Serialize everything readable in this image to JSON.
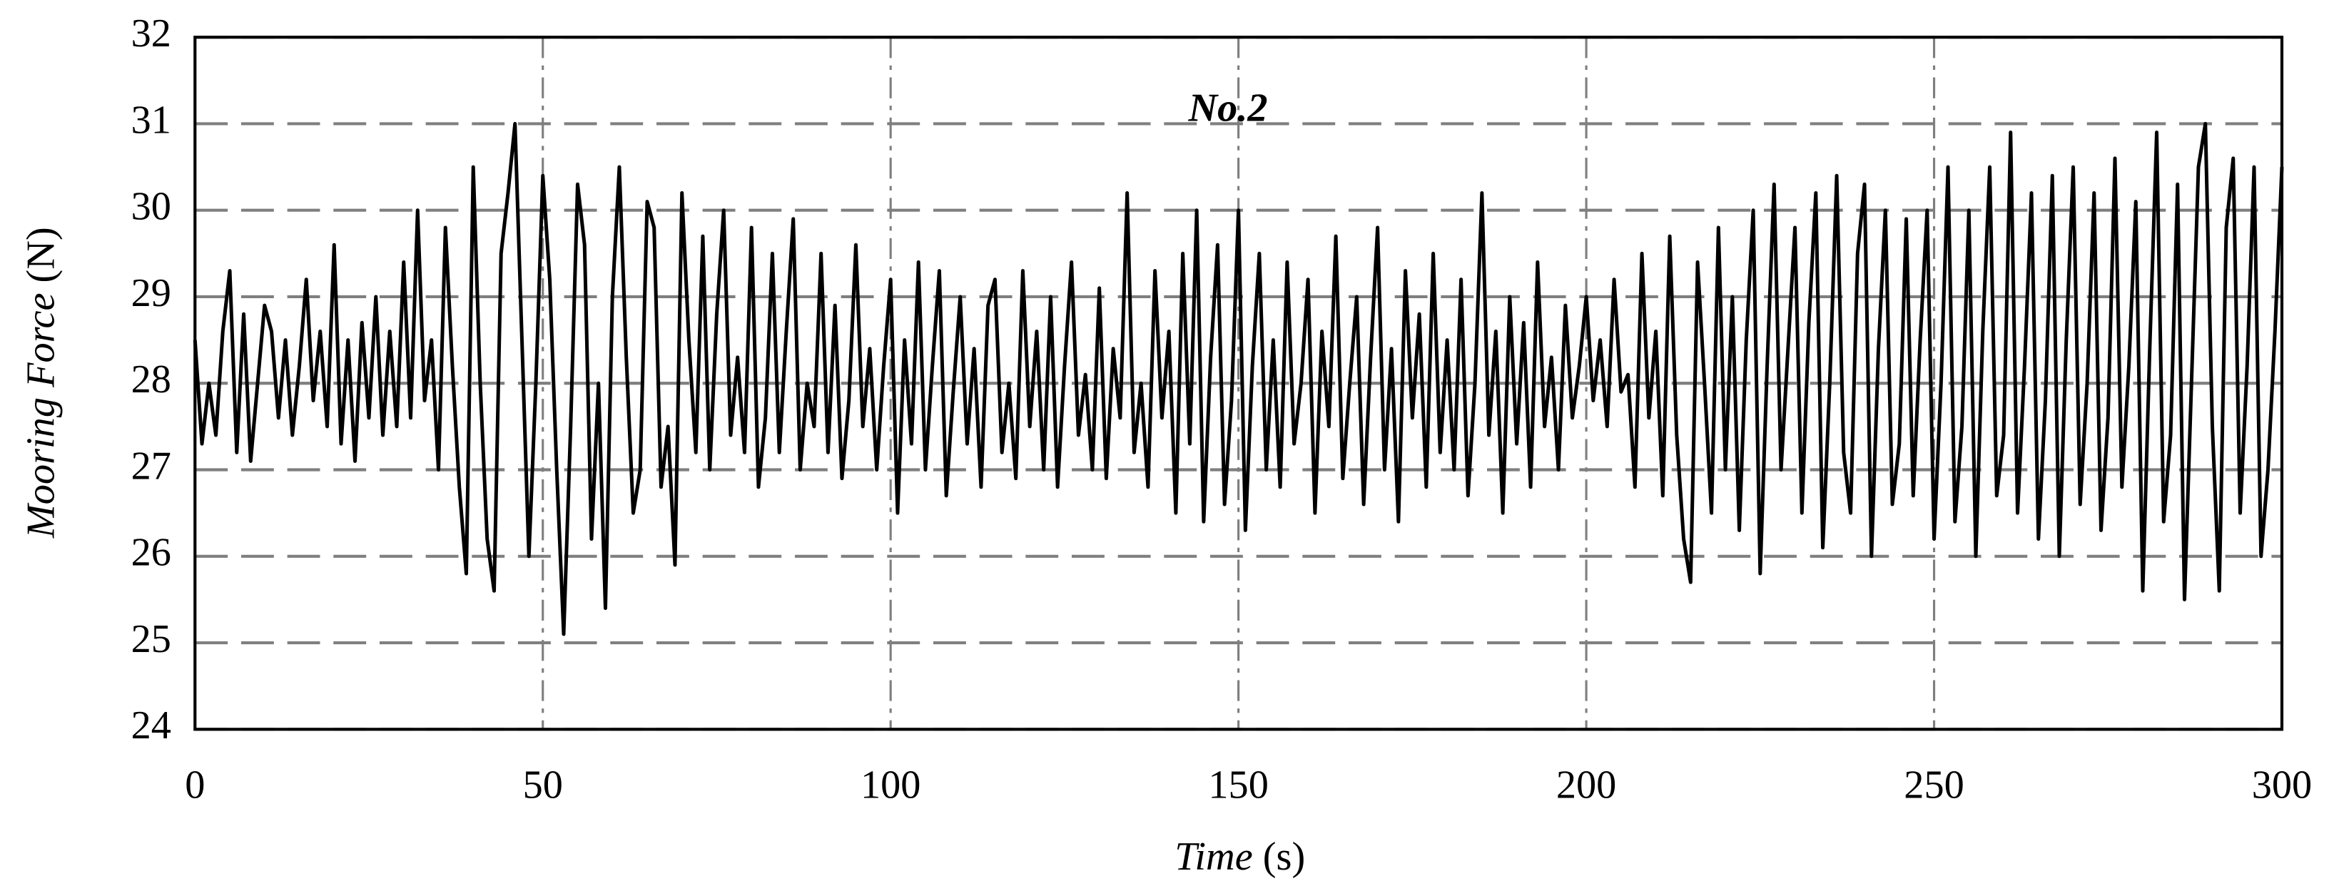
{
  "chart_data": {
    "type": "line",
    "title": "No.2",
    "x_label": {
      "name": "Time",
      "unit": "(s)"
    },
    "y_label": {
      "name": "Mooring Force",
      "unit": "(N)"
    },
    "xlim": [
      0,
      300
    ],
    "xticks": [
      0,
      50,
      100,
      150,
      200,
      250,
      300
    ],
    "ylim": [
      24,
      32
    ],
    "yticks": [
      24,
      25,
      26,
      27,
      28,
      29,
      30,
      31,
      32
    ],
    "grid": true,
    "x": [
      0,
      1,
      2,
      3,
      4,
      5,
      6,
      7,
      8,
      9,
      10,
      11,
      12,
      13,
      14,
      15,
      16,
      17,
      18,
      19,
      20,
      21,
      22,
      23,
      24,
      25,
      26,
      27,
      28,
      29,
      30,
      31,
      32,
      33,
      34,
      35,
      36,
      37,
      38,
      39,
      40,
      41,
      42,
      43,
      44,
      45,
      46,
      47,
      48,
      49,
      50,
      51,
      52,
      53,
      54,
      55,
      56,
      57,
      58,
      59,
      60,
      61,
      62,
      63,
      64,
      65,
      66,
      67,
      68,
      69,
      70,
      71,
      72,
      73,
      74,
      75,
      76,
      77,
      78,
      79,
      80,
      81,
      82,
      83,
      84,
      85,
      86,
      87,
      88,
      89,
      90,
      91,
      92,
      93,
      94,
      95,
      96,
      97,
      98,
      99,
      100,
      101,
      102,
      103,
      104,
      105,
      106,
      107,
      108,
      109,
      110,
      111,
      112,
      113,
      114,
      115,
      116,
      117,
      118,
      119,
      120,
      121,
      122,
      123,
      124,
      125,
      126,
      127,
      128,
      129,
      130,
      131,
      132,
      133,
      134,
      135,
      136,
      137,
      138,
      139,
      140,
      141,
      142,
      143,
      144,
      145,
      146,
      147,
      148,
      149,
      150,
      151,
      152,
      153,
      154,
      155,
      156,
      157,
      158,
      159,
      160,
      161,
      162,
      163,
      164,
      165,
      166,
      167,
      168,
      169,
      170,
      171,
      172,
      173,
      174,
      175,
      176,
      177,
      178,
      179,
      180,
      181,
      182,
      183,
      184,
      185,
      186,
      187,
      188,
      189,
      190,
      191,
      192,
      193,
      194,
      195,
      196,
      197,
      198,
      199,
      200,
      201,
      202,
      203,
      204,
      205,
      206,
      207,
      208,
      209,
      210,
      211,
      212,
      213,
      214,
      215,
      216,
      217,
      218,
      219,
      220,
      221,
      222,
      223,
      224,
      225,
      226,
      227,
      228,
      229,
      230,
      231,
      232,
      233,
      234,
      235,
      236,
      237,
      238,
      239,
      240,
      241,
      242,
      243,
      244,
      245,
      246,
      247,
      248,
      249,
      250,
      251,
      252,
      253,
      254,
      255,
      256,
      257,
      258,
      259,
      260,
      261,
      262,
      263,
      264,
      265,
      266,
      267,
      268,
      269,
      270,
      271,
      272,
      273,
      274,
      275,
      276,
      277,
      278,
      279,
      280,
      281,
      282,
      283,
      284,
      285,
      286,
      287,
      288,
      289,
      290,
      291,
      292,
      293,
      294,
      295,
      296,
      297,
      298,
      299,
      300
    ],
    "series": [
      {
        "name": "No.2",
        "color": "#000000",
        "values": [
          28.5,
          27.3,
          28.0,
          27.4,
          28.6,
          29.3,
          27.2,
          28.8,
          27.1,
          28.0,
          28.9,
          28.6,
          27.6,
          28.5,
          27.4,
          28.2,
          29.2,
          27.8,
          28.6,
          27.5,
          29.6,
          27.3,
          28.5,
          27.1,
          28.7,
          27.6,
          29.0,
          27.4,
          28.6,
          27.5,
          29.4,
          27.6,
          30.0,
          27.8,
          28.5,
          27.0,
          29.8,
          28.2,
          26.8,
          25.8,
          30.5,
          28.0,
          26.2,
          25.6,
          29.5,
          30.2,
          31.0,
          28.5,
          26.0,
          28.0,
          30.4,
          29.2,
          27.0,
          25.1,
          27.5,
          30.3,
          29.6,
          26.2,
          28.0,
          25.4,
          29.0,
          30.5,
          28.3,
          26.5,
          27.0,
          30.1,
          29.8,
          26.8,
          27.5,
          25.9,
          30.2,
          28.5,
          27.2,
          29.7,
          27.0,
          28.8,
          30.0,
          27.4,
          28.3,
          27.2,
          29.8,
          26.8,
          27.6,
          29.5,
          27.2,
          28.6,
          29.9,
          27.0,
          28.0,
          27.5,
          29.5,
          27.2,
          28.9,
          26.9,
          27.8,
          29.6,
          27.5,
          28.4,
          27.0,
          28.2,
          29.2,
          26.5,
          28.5,
          27.3,
          29.4,
          27.0,
          28.2,
          29.3,
          26.7,
          27.9,
          29.0,
          27.3,
          28.4,
          26.8,
          28.9,
          29.2,
          27.2,
          28.0,
          26.9,
          29.3,
          27.5,
          28.6,
          27.0,
          29.0,
          26.8,
          28.2,
          29.4,
          27.4,
          28.1,
          27.0,
          29.1,
          26.9,
          28.4,
          27.6,
          30.2,
          27.2,
          28.0,
          26.8,
          29.3,
          27.6,
          28.6,
          26.5,
          29.5,
          27.3,
          30.0,
          26.4,
          28.3,
          29.6,
          26.6,
          27.8,
          30.0,
          26.3,
          28.2,
          29.5,
          27.0,
          28.5,
          26.8,
          29.4,
          27.3,
          28.0,
          29.2,
          26.5,
          28.6,
          27.5,
          29.7,
          26.9,
          28.0,
          29.0,
          26.6,
          28.3,
          29.8,
          27.0,
          28.4,
          26.4,
          29.3,
          27.6,
          28.8,
          26.8,
          29.5,
          27.2,
          28.5,
          27.0,
          29.2,
          26.7,
          28.0,
          30.2,
          27.4,
          28.6,
          26.5,
          29.0,
          27.3,
          28.7,
          26.8,
          29.4,
          27.5,
          28.3,
          27.0,
          28.9,
          27.6,
          28.2,
          29.0,
          27.8,
          28.5,
          27.5,
          29.2,
          27.9,
          28.1,
          26.8,
          29.5,
          27.6,
          28.6,
          26.7,
          29.7,
          27.4,
          26.2,
          25.7,
          29.4,
          28.0,
          26.5,
          29.8,
          27.0,
          29.0,
          26.3,
          28.5,
          30.0,
          25.8,
          28.2,
          30.3,
          27.0,
          28.4,
          29.8,
          26.5,
          28.7,
          30.2,
          26.1,
          28.0,
          30.4,
          27.2,
          26.5,
          29.5,
          30.3,
          26.0,
          28.4,
          30.0,
          26.6,
          27.3,
          29.9,
          26.7,
          28.5,
          30.0,
          26.2,
          28.0,
          30.5,
          26.4,
          27.5,
          30.0,
          26.0,
          28.6,
          30.5,
          26.7,
          27.4,
          30.9,
          26.5,
          28.2,
          30.2,
          26.2,
          27.8,
          30.4,
          26.0,
          28.5,
          30.5,
          26.6,
          28.0,
          30.2,
          26.3,
          27.6,
          30.6,
          26.8,
          28.2,
          30.1,
          25.6,
          28.4,
          30.9,
          26.4,
          27.4,
          30.3,
          25.5,
          28.0,
          30.5,
          31.0,
          27.5,
          25.6,
          29.8,
          30.6,
          26.5,
          28.2,
          30.5,
          26.0,
          27.0,
          28.6,
          30.5
        ]
      }
    ]
  }
}
